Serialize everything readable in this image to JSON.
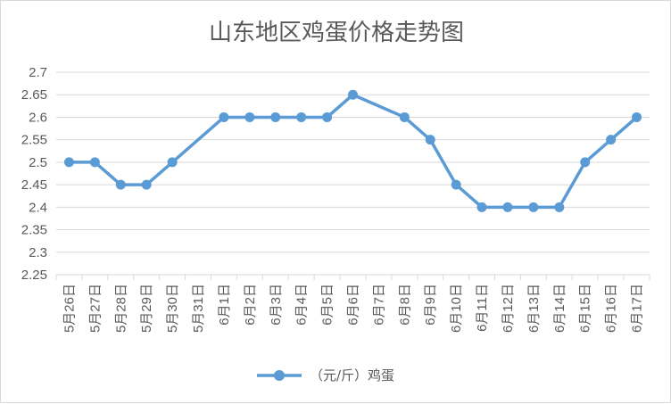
{
  "chart_data": {
    "type": "line",
    "title": "山东地区鸡蛋价格走势图",
    "xlabel": "",
    "ylabel": "",
    "categories": [
      "5月26日",
      "5月27日",
      "5月28日",
      "5月29日",
      "5月30日",
      "5月31日",
      "6月1日",
      "6月2日",
      "6月3日",
      "6月4日",
      "6月5日",
      "6月6日",
      "6月7日",
      "6月8日",
      "6月9日",
      "6月10日",
      "6月11日",
      "6月12日",
      "6月13日",
      "6月14日",
      "6月15日",
      "6月16日",
      "6月17日"
    ],
    "series": [
      {
        "name": "（元/斤）鸡蛋",
        "values": [
          2.5,
          2.5,
          2.45,
          2.45,
          2.5,
          null,
          2.6,
          2.6,
          2.6,
          2.6,
          2.6,
          2.65,
          null,
          2.6,
          2.55,
          2.45,
          2.4,
          2.4,
          2.4,
          2.4,
          2.5,
          2.55,
          2.6
        ],
        "color": "#5b9bd5"
      }
    ],
    "ylim": [
      2.25,
      2.7
    ],
    "yticks": [
      "2.25",
      "2.3",
      "2.35",
      "2.4",
      "2.45",
      "2.5",
      "2.55",
      "2.6",
      "2.65",
      "2.7"
    ],
    "grid": true,
    "legend": "bottom",
    "gridColor": "#d9d9d9",
    "textColor": "#595959"
  }
}
